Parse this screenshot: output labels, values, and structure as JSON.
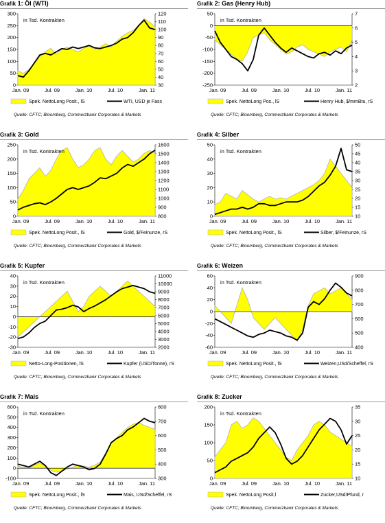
{
  "colors": {
    "area": "#ffff00",
    "area_outline": "#b2b2b2",
    "line": "#000000",
    "zero": "#000000"
  },
  "chart_data": [
    {
      "type": "area+line",
      "number": "1",
      "grafik_label": "Grafik",
      "title": "Öl (WTI)",
      "x_ticks": [
        "Jan. 09",
        "Jul. 09",
        "Jan. 10",
        "Jul. 10",
        "Jan. 11"
      ],
      "left_ticks": [
        "0",
        "50",
        "100",
        "150",
        "200",
        "250",
        "300"
      ],
      "left_range": [
        0,
        300
      ],
      "right_ticks": [
        "30",
        "40",
        "50",
        "60",
        "70",
        "80",
        "90",
        "100",
        "110",
        "120"
      ],
      "right_range": [
        30,
        120
      ],
      "annotation": "in Tsd. Kontrakten",
      "legend": [
        "Spek. NettoLong Posit., lS",
        "WTI, USD je Fass"
      ],
      "source": "Quelle: CFTC; Bloomberg, Commerzbank Corporates & Markets",
      "bars": [
        60,
        50,
        65,
        90,
        120,
        140,
        155,
        130,
        150,
        160,
        150,
        140,
        155,
        165,
        150,
        160,
        175,
        160,
        185,
        205,
        220,
        230,
        250,
        280,
        265,
        245
      ],
      "line": [
        42,
        40,
        48,
        58,
        68,
        70,
        68,
        72,
        76,
        75,
        78,
        76,
        78,
        80,
        77,
        76,
        78,
        80,
        83,
        88,
        90,
        96,
        105,
        112,
        102,
        100
      ]
    },
    {
      "type": "area+line",
      "number": "2",
      "grafik_label": "Grafik",
      "title": "Gas (Henry Hub)",
      "x_ticks": [
        "Jan. 09",
        "Jul. 09",
        "Jan. 10",
        "Jul. 10",
        "Jan. 11"
      ],
      "left_ticks": [
        "-250",
        "-200",
        "-150",
        "-100",
        "-50",
        "0",
        "50"
      ],
      "left_range": [
        -250,
        50
      ],
      "right_ticks": [
        "2",
        "3",
        "4",
        "5",
        "6",
        "7"
      ],
      "right_range": [
        2,
        7
      ],
      "annotation": "in Tsd. Kontrakten",
      "legend": [
        "Spek. NettoLong Pos., lS",
        "Henry Hub, $/mmBtu, rS"
      ],
      "source": "Quelle: CFTC; Bloomberg, Commerzbank Corporates & Markets",
      "bars": [
        -60,
        -80,
        -100,
        -120,
        -140,
        -150,
        -110,
        -50,
        -40,
        -30,
        -60,
        -80,
        -100,
        -120,
        -110,
        -90,
        -80,
        -100,
        -110,
        -120,
        -130,
        -110,
        -100,
        -90,
        -110,
        -60
      ],
      "line": [
        5.8,
        5.0,
        4.5,
        4.0,
        3.8,
        3.5,
        3.0,
        3.8,
        5.5,
        6.0,
        5.5,
        5.0,
        4.6,
        4.3,
        4.6,
        4.4,
        4.2,
        4.0,
        3.9,
        4.2,
        4.3,
        4.1,
        4.4,
        4.2,
        4.6,
        4.8
      ]
    },
    {
      "type": "area+line",
      "number": "3",
      "grafik_label": "Grafik",
      "title": "Gold",
      "x_ticks": [
        "Jan. 09",
        "Jul. 09",
        "Jan. 10",
        "Jul. 10",
        "Jan. 11"
      ],
      "left_ticks": [
        "0",
        "50",
        "100",
        "150",
        "200",
        "250"
      ],
      "left_range": [
        0,
        250
      ],
      "right_ticks": [
        "800",
        "900",
        "1000",
        "1100",
        "1200",
        "1300",
        "1400",
        "1500",
        "1600"
      ],
      "right_range": [
        800,
        1600
      ],
      "annotation": "in Tsd. Kontrakten",
      "legend": [
        "Spek. NettoLong Posit., lS",
        "Gold, $/Feinunze, rS"
      ],
      "source": "Quelle: CFTC; Bloomberg, Commerzbank Corporates & Markets",
      "bars": [
        60,
        90,
        130,
        150,
        170,
        140,
        160,
        200,
        230,
        240,
        200,
        170,
        180,
        200,
        230,
        240,
        200,
        180,
        210,
        230,
        210,
        190,
        200,
        220,
        230,
        220
      ],
      "line": [
        870,
        900,
        920,
        940,
        950,
        930,
        960,
        1000,
        1050,
        1100,
        1120,
        1100,
        1120,
        1140,
        1180,
        1230,
        1220,
        1250,
        1280,
        1340,
        1380,
        1360,
        1400,
        1440,
        1500,
        1540
      ]
    },
    {
      "type": "area+line",
      "number": "4",
      "grafik_label": "Grafik",
      "title": "Silber",
      "x_ticks": [
        "Jan. 09",
        "Jul. 09",
        "Jan. 10",
        "Jul. 10",
        "Jan. 11"
      ],
      "left_ticks": [
        "0",
        "10",
        "20",
        "30",
        "40",
        "50"
      ],
      "left_range": [
        0,
        50
      ],
      "right_ticks": [
        "10",
        "15",
        "20",
        "25",
        "30",
        "35",
        "40",
        "45",
        "50"
      ],
      "right_range": [
        10,
        50
      ],
      "annotation": "in Tsd. Kontrakten",
      "legend": [
        "Spek. NettoLong Posit., lS",
        "Silber, $/Feinunze, rS"
      ],
      "source": "Quelle: CFTC; Bloomberg, Commerzbank Corporates & Markets",
      "bars": [
        8,
        10,
        16,
        14,
        12,
        18,
        15,
        12,
        10,
        12,
        14,
        12,
        13,
        12,
        14,
        16,
        18,
        20,
        22,
        25,
        30,
        40,
        35,
        30,
        25,
        20
      ],
      "line": [
        11,
        12,
        13,
        14,
        14,
        15,
        14,
        15,
        17,
        17,
        16,
        16,
        17,
        18,
        18,
        18,
        19,
        21,
        24,
        27,
        29,
        33,
        38,
        48,
        36,
        35
      ]
    },
    {
      "type": "area+line",
      "number": "5",
      "grafik_label": "Grafik",
      "title": "Kupfer",
      "x_ticks": [
        "Jan. 09",
        "Jul. 09",
        "Jan. 10",
        "Jul. 10",
        "Jan. 11"
      ],
      "left_ticks": [
        "-30",
        "-20",
        "-10",
        "0",
        "10",
        "20",
        "30",
        "40"
      ],
      "left_range": [
        -30,
        40
      ],
      "right_ticks": [
        "2000",
        "3000",
        "4000",
        "5000",
        "6000",
        "7000",
        "8000",
        "9000",
        "10000",
        "11000"
      ],
      "right_range": [
        2000,
        11000
      ],
      "annotation": "in Tsd. Kontrakten",
      "legend": [
        "Netto-Long-Positionen, lS",
        "Kupfer (USD/Tonne), rS"
      ],
      "source": "Quelle: CFTC; Bloomberg, Commerzbank Corporates & Markets",
      "bars": [
        -20,
        -15,
        -10,
        -5,
        0,
        5,
        10,
        15,
        20,
        25,
        15,
        5,
        10,
        20,
        25,
        30,
        25,
        20,
        25,
        30,
        35,
        30,
        25,
        20,
        15,
        10
      ],
      "line": [
        3100,
        3300,
        3800,
        4500,
        5000,
        5300,
        6000,
        6700,
        6800,
        7000,
        7300,
        7100,
        6500,
        6900,
        7200,
        7600,
        8000,
        8500,
        9000,
        9400,
        9600,
        9800,
        9600,
        9400,
        9000,
        8800
      ]
    },
    {
      "type": "area+line",
      "number": "6",
      "grafik_label": "Grafik",
      "title": "Weizen",
      "x_ticks": [
        "Jan. 09",
        "Jul. 09",
        "Jan. 10",
        "Jul. 10",
        "Jan. 11"
      ],
      "left_ticks": [
        "-60",
        "-40",
        "-20",
        "0",
        "20",
        "40",
        "60"
      ],
      "left_range": [
        -60,
        60
      ],
      "right_ticks": [
        "400",
        "500",
        "600",
        "700",
        "800",
        "900"
      ],
      "right_range": [
        400,
        900
      ],
      "annotation": "in Tsd. Kontrakten",
      "legend": [
        "Spek. NettoLong Posit., lS",
        "Weizen,USd/Scheffel, rS"
      ],
      "source": "Quelle: CFTC; Bloomberg, Commerzbank Corporates & Markets",
      "bars": [
        10,
        0,
        -10,
        -20,
        10,
        40,
        20,
        -10,
        -20,
        -30,
        -20,
        -10,
        -20,
        -30,
        -40,
        -50,
        -30,
        10,
        30,
        35,
        40,
        30,
        35,
        40,
        30,
        20
      ],
      "line": [
        600,
        580,
        560,
        540,
        520,
        500,
        480,
        470,
        490,
        500,
        520,
        510,
        500,
        480,
        470,
        450,
        500,
        680,
        720,
        700,
        740,
        800,
        850,
        820,
        780,
        760
      ]
    },
    {
      "type": "area+line",
      "number": "7",
      "grafik_label": "Grafik",
      "title": "Mais",
      "x_ticks": [
        "Jan. 09",
        "Jul. 09",
        "Jan. 10",
        "Jul. 10",
        "Jan. 11"
      ],
      "left_ticks": [
        "-100",
        "0",
        "100",
        "200",
        "300",
        "400",
        "500",
        "600"
      ],
      "left_range": [
        -100,
        600
      ],
      "right_ticks": [
        "300",
        "400",
        "500",
        "600",
        "700",
        "800"
      ],
      "right_range": [
        300,
        800
      ],
      "annotation": "in Tsd. Kontrakten",
      "legend": [
        "Spek. NettoLong Posit., lS",
        "Mais, USd/Scheffel, rS"
      ],
      "source": "Quelle: CFTC; Bloomberg, Commerzbank Corporates & Markets",
      "bars": [
        20,
        10,
        0,
        30,
        50,
        20,
        -20,
        -40,
        -30,
        -10,
        10,
        30,
        20,
        10,
        30,
        60,
        150,
        250,
        300,
        350,
        400,
        430,
        450,
        420,
        400,
        380
      ],
      "line": [
        400,
        390,
        380,
        400,
        420,
        390,
        340,
        320,
        350,
        380,
        400,
        390,
        380,
        360,
        370,
        400,
        470,
        550,
        580,
        600,
        640,
        660,
        690,
        720,
        700,
        690
      ]
    },
    {
      "type": "area+line",
      "number": "8",
      "grafik_label": "Grafik",
      "title": "Zucker",
      "x_ticks": [
        "Jan. 09",
        "Jul. 09",
        "Jan. 10",
        "Jul. 10",
        "Jan. 11"
      ],
      "left_ticks": [
        "0",
        "50",
        "100",
        "150",
        "200"
      ],
      "left_range": [
        0,
        200
      ],
      "right_ticks": [
        "10",
        "15",
        "20",
        "25",
        "30",
        "35"
      ],
      "right_range": [
        10,
        35
      ],
      "annotation": "in Tsd. Kontrakten",
      "legend": [
        "Spek. NettoLong Posit,l",
        "Zucker,USd/Pfund, r"
      ],
      "source": "Quelle: CFTC; Bloomberg, Commerzbank Corporates & Markets",
      "bars": [
        60,
        80,
        100,
        150,
        160,
        140,
        150,
        170,
        160,
        140,
        120,
        100,
        80,
        60,
        50,
        80,
        100,
        120,
        150,
        160,
        150,
        130,
        120,
        110,
        100,
        90
      ],
      "line": [
        12,
        13,
        14,
        16,
        17,
        18,
        19,
        21,
        24,
        26,
        28,
        26,
        22,
        17,
        15,
        16,
        18,
        21,
        24,
        27,
        29,
        31,
        30,
        27,
        22,
        25
      ]
    }
  ]
}
